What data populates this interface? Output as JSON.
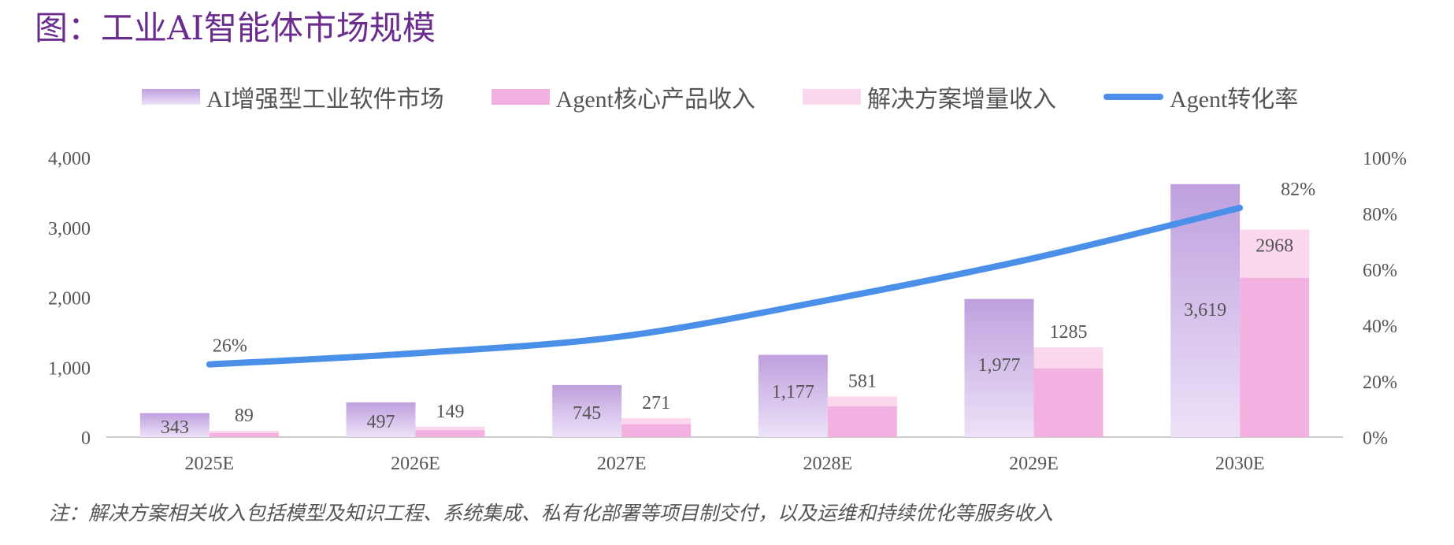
{
  "title": "图：工业AI智能体市场规模",
  "note": "注：解决方案相关收入包括模型及知识工程、系统集成、私有化部署等项目制交付，以及运维和持续优化等服务收入",
  "colors": {
    "ai_top": "#bfa0de",
    "ai_bottom": "#ece2f8",
    "core": "#f2b1e0",
    "solution": "#fbd7ee",
    "line": "#4a90e8",
    "axis_text": "#555555",
    "title": "#6b2c8f"
  },
  "chart_data": {
    "type": "bar+line",
    "categories": [
      "2025E",
      "2026E",
      "2027E",
      "2028E",
      "2029E",
      "2030E"
    ],
    "series": [
      {
        "name": "AI增强型工业软件市场",
        "kind": "bar",
        "values": [
          343,
          497,
          745,
          1177,
          1977,
          3619
        ],
        "labels": [
          "343",
          "497",
          "745",
          "1,177",
          "1,977",
          "3,619"
        ]
      },
      {
        "name": "Agent核心产品收入",
        "kind": "stacked-bar",
        "values": [
          60,
          100,
          185,
          440,
          985,
          2280
        ]
      },
      {
        "name": "解决方案增量收入",
        "kind": "stacked-bar",
        "values": [
          29,
          49,
          86,
          141,
          300,
          688
        ]
      },
      {
        "name": "Agent转化率",
        "kind": "line",
        "axis": "right",
        "values": [
          26,
          30,
          36,
          49,
          64,
          82
        ],
        "labels": [
          "26%",
          "",
          "",
          "",
          "",
          "82%"
        ]
      }
    ],
    "stack_totals": [
      "89",
      "149",
      "271",
      "581",
      "1285",
      "2968"
    ],
    "left_axis": {
      "ylim": [
        0,
        4000
      ],
      "ticks": [
        "0",
        "1,000",
        "2,000",
        "3,000",
        "4,000"
      ]
    },
    "right_axis": {
      "ylim": [
        0,
        100
      ],
      "ticks": [
        "0%",
        "20%",
        "40%",
        "60%",
        "80%",
        "100%"
      ]
    },
    "legend_position": "top",
    "grid": false
  }
}
